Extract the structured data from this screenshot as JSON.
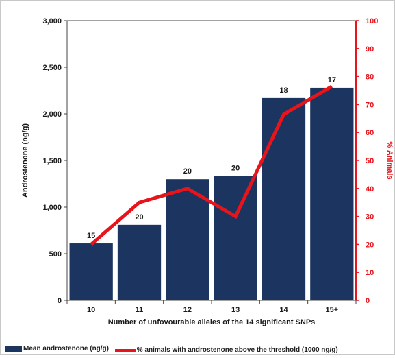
{
  "chart_data": {
    "type": "bar",
    "categories": [
      "10",
      "11",
      "12",
      "13",
      "14",
      "15+"
    ],
    "series": [
      {
        "name": "Mean androstenone (ng/g)",
        "type": "bar",
        "axis": "left",
        "values": [
          610,
          810,
          1300,
          1335,
          2170,
          2280
        ],
        "labels": [
          "15",
          "20",
          "20",
          "20",
          "18",
          "17"
        ],
        "color": "#1b3560"
      },
      {
        "name": "% animals with androstenone above the threshold (1000 ng/g)",
        "type": "line",
        "axis": "right",
        "values": [
          20,
          35,
          40,
          30,
          66.5,
          76.5
        ],
        "color": "#e8141b"
      }
    ],
    "xlabel": "Number of unfovourable alleles of the 14 significant SNPs",
    "ylabel": "Androstenone (ng/g)",
    "y2label": "% Animals",
    "ylim": [
      0,
      3000
    ],
    "y2lim": [
      0,
      100
    ],
    "yticks": [
      "0",
      "500",
      "1,000",
      "1,500",
      "2,000",
      "2,500",
      "3,000"
    ],
    "y2ticks": [
      "0",
      "10",
      "20",
      "30",
      "40",
      "50",
      "60",
      "70",
      "80",
      "90",
      "100"
    ],
    "grid": false,
    "legend": "bottom"
  },
  "legend": {
    "bar_label": "Mean androstenone (ng/g)",
    "line_label": "% animals with androstenone above the threshold (1000 ng/g)"
  }
}
